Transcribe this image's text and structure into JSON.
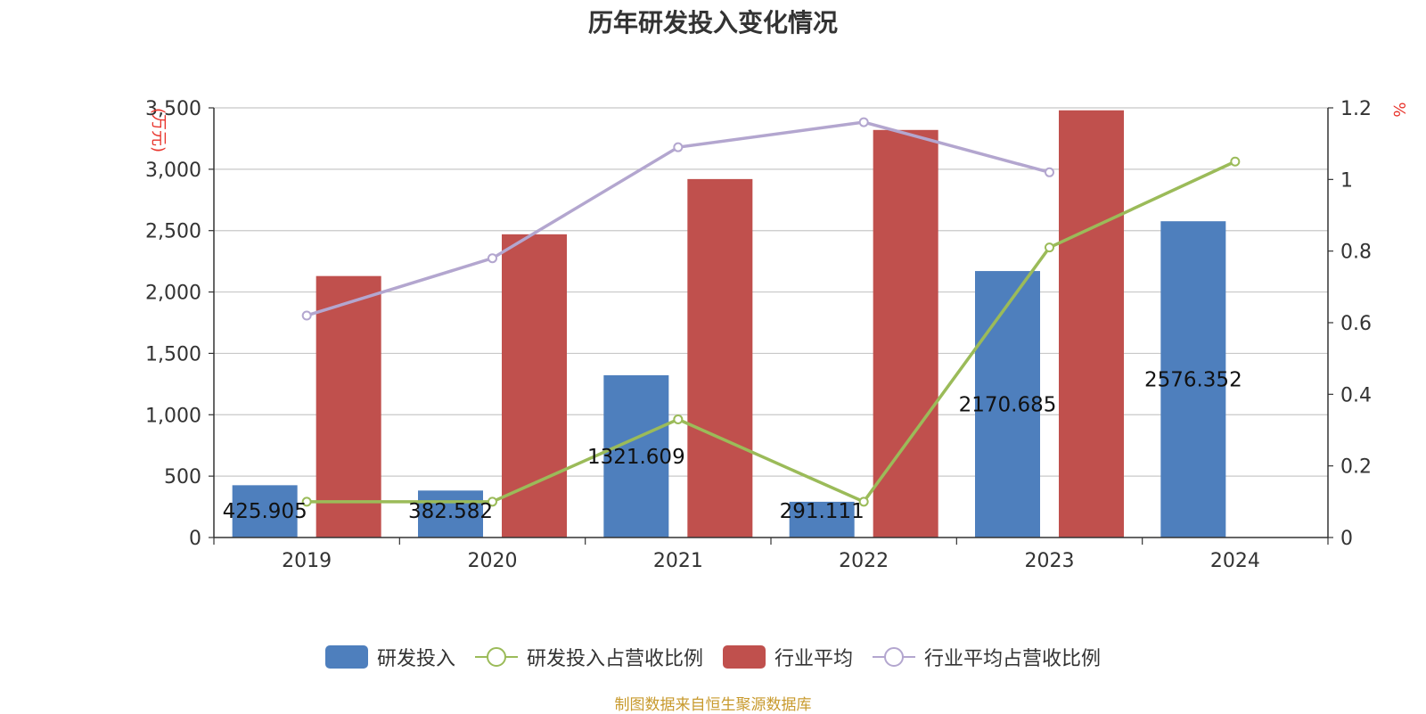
{
  "title": "历年研发投入变化情况",
  "source": "制图数据来自恒生聚源数据库",
  "chart_data": {
    "type": "bar",
    "categories": [
      "2019",
      "2020",
      "2021",
      "2022",
      "2023",
      "2024"
    ],
    "y_left": {
      "label": "(万元)",
      "ylim": [
        0,
        3500
      ],
      "ticks": [
        "0",
        "500",
        "1,000",
        "1,500",
        "2,000",
        "2,500",
        "3,000",
        "3,500"
      ]
    },
    "y_right": {
      "label": "%",
      "ylim": [
        0,
        1.2
      ],
      "ticks": [
        "0",
        "0.2",
        "0.4",
        "0.6",
        "0.8",
        "1",
        "1.2"
      ]
    },
    "grid": true,
    "legend_position": "bottom",
    "series": [
      {
        "name": "研发投入",
        "type": "bar",
        "axis": "left",
        "color": "#4e7fbd",
        "values": [
          425.905,
          382.582,
          1321.609,
          291.111,
          2170.685,
          2576.352
        ],
        "labels": [
          "425.905",
          "382.582",
          "1321.609",
          "291.111",
          "2170.685",
          "2576.352"
        ]
      },
      {
        "name": "研发投入占营收比例",
        "type": "line",
        "axis": "right",
        "color": "#9bbb59",
        "values": [
          0.1,
          0.1,
          0.33,
          0.1,
          0.81,
          1.05
        ]
      },
      {
        "name": "行业平均",
        "type": "bar",
        "axis": "left",
        "color": "#c0504d",
        "values": [
          2130,
          2470,
          2920,
          3320,
          3480,
          null
        ]
      },
      {
        "name": "行业平均占营收比例",
        "type": "line",
        "axis": "right",
        "color": "#b3a6cf",
        "values": [
          0.62,
          0.78,
          1.09,
          1.16,
          1.02,
          null
        ]
      }
    ]
  }
}
